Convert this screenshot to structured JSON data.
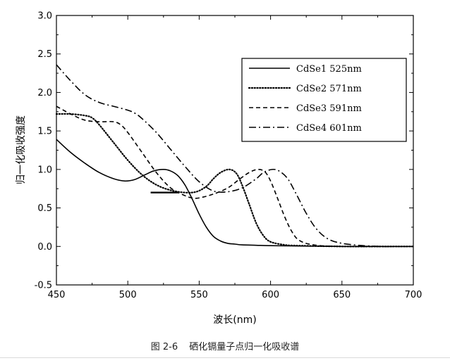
{
  "chart_data": {
    "type": "line",
    "xlabel": "波长(nm)",
    "ylabel": "归一化吸收强度",
    "xlim": [
      450,
      700
    ],
    "ylim": [
      -0.5,
      3.0
    ],
    "xticks": [
      450,
      500,
      550,
      600,
      650,
      700
    ],
    "yticks": [
      -0.5,
      0.0,
      0.5,
      1.0,
      1.5,
      2.0,
      2.5,
      3.0
    ],
    "legend_position": "top-right",
    "series": [
      {
        "name": "CdSe1 525nm",
        "style": "solid",
        "x": [
          450,
          460,
          470,
          480,
          490,
          498,
          505,
          512,
          518,
          525,
          530,
          535,
          540,
          545,
          550,
          555,
          560,
          565,
          570,
          575,
          580,
          590,
          600,
          620,
          650,
          700
        ],
        "y": [
          1.39,
          1.22,
          1.08,
          0.96,
          0.88,
          0.85,
          0.87,
          0.93,
          0.98,
          1.0,
          0.98,
          0.92,
          0.8,
          0.62,
          0.42,
          0.25,
          0.13,
          0.07,
          0.04,
          0.03,
          0.02,
          0.015,
          0.01,
          0.005,
          0.0,
          0.0
        ]
      },
      {
        "name": "CdSe2 571nm",
        "style": "dotted",
        "x": [
          450,
          460,
          470,
          475,
          480,
          490,
          500,
          510,
          520,
          530,
          540,
          548,
          555,
          560,
          565,
          571,
          576,
          580,
          585,
          590,
          595,
          600,
          610,
          620,
          650,
          700
        ],
        "y": [
          1.72,
          1.72,
          1.7,
          1.67,
          1.58,
          1.35,
          1.12,
          0.93,
          0.8,
          0.73,
          0.7,
          0.71,
          0.78,
          0.88,
          0.96,
          1.0,
          0.95,
          0.8,
          0.55,
          0.3,
          0.14,
          0.06,
          0.02,
          0.01,
          0.0,
          0.0
        ]
      },
      {
        "name": "CdSe3 591nm",
        "style": "dashed",
        "x": [
          450,
          460,
          470,
          480,
          490,
          495,
          500,
          510,
          520,
          530,
          540,
          545,
          550,
          560,
          570,
          578,
          585,
          591,
          596,
          600,
          605,
          610,
          615,
          620,
          630,
          650,
          700
        ],
        "y": [
          1.82,
          1.72,
          1.64,
          1.62,
          1.62,
          1.58,
          1.48,
          1.22,
          0.96,
          0.76,
          0.66,
          0.63,
          0.63,
          0.68,
          0.76,
          0.87,
          0.96,
          1.0,
          0.97,
          0.85,
          0.62,
          0.38,
          0.19,
          0.08,
          0.02,
          0.0,
          0.0
        ]
      },
      {
        "name": "CdSe4 601nm",
        "style": "dashdot",
        "x": [
          450,
          460,
          470,
          480,
          490,
          500,
          505,
          510,
          520,
          530,
          540,
          550,
          560,
          570,
          580,
          590,
          595,
          601,
          606,
          612,
          618,
          625,
          632,
          640,
          650,
          665,
          680,
          700
        ],
        "y": [
          2.36,
          2.15,
          1.97,
          1.87,
          1.82,
          1.77,
          1.73,
          1.66,
          1.48,
          1.26,
          1.04,
          0.84,
          0.72,
          0.71,
          0.76,
          0.88,
          0.96,
          1.0,
          0.98,
          0.88,
          0.68,
          0.43,
          0.23,
          0.1,
          0.04,
          0.01,
          0.0,
          0.0
        ]
      }
    ],
    "annotations": [
      {
        "style": "solid-thick",
        "x": [
          516,
          536
        ],
        "y": [
          0.7,
          0.7
        ]
      }
    ]
  },
  "caption": {
    "figure_no": "图 2-6",
    "text": "硒化镉量子点归一化吸收谱"
  }
}
